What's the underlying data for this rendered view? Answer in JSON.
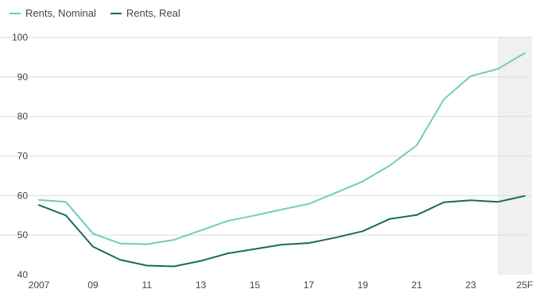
{
  "chart_data": {
    "type": "line",
    "x_tick_labels": [
      "2007",
      "09",
      "11",
      "13",
      "15",
      "17",
      "19",
      "21",
      "23",
      "25F"
    ],
    "y_tick_labels": [
      "40",
      "50",
      "60",
      "70",
      "80",
      "90",
      "100"
    ],
    "x": [
      2007,
      2008,
      2009,
      2010,
      2011,
      2012,
      2013,
      2014,
      2015,
      2016,
      2017,
      2018,
      2019,
      2020,
      2021,
      2022,
      2023,
      2024,
      2025
    ],
    "ylim": [
      40,
      100
    ],
    "xlim": [
      2007,
      2025
    ],
    "grid": true,
    "legend_position": "top-left",
    "forecast_shading": [
      2024,
      2025
    ],
    "series": [
      {
        "name": "Rents, Nominal",
        "color": "#72cbbf",
        "values": [
          58.9,
          58.4,
          50.4,
          47.9,
          47.7,
          48.8,
          51.2,
          53.6,
          55.0,
          56.5,
          57.9,
          60.7,
          63.6,
          67.6,
          72.7,
          84.3,
          90.2,
          92.0,
          96.0
        ]
      },
      {
        "name": "Rents, Real",
        "color": "#1a6a60",
        "values": [
          57.6,
          55.0,
          47.1,
          43.8,
          42.3,
          42.1,
          43.5,
          45.4,
          46.5,
          47.6,
          48.0,
          49.4,
          51.0,
          54.1,
          55.1,
          58.3,
          58.8,
          58.4,
          59.9
        ]
      }
    ]
  }
}
